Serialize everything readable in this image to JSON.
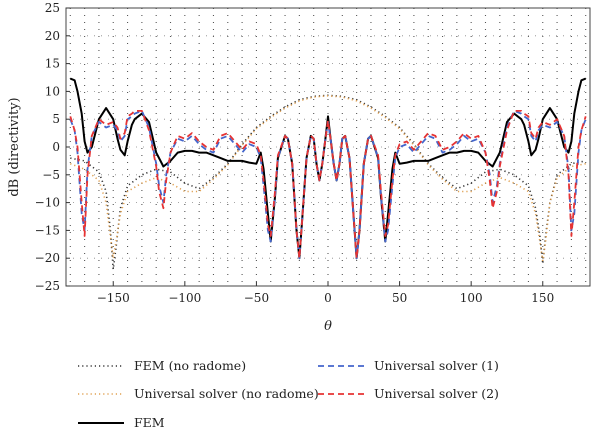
{
  "chart_data": {
    "type": "line",
    "xlabel": "θ",
    "ylabel": "dB (directivity)",
    "xlim": [
      -183,
      183
    ],
    "ylim": [
      -25,
      25
    ],
    "x_ticks": [
      -150,
      -100,
      -50,
      0,
      50,
      100,
      150
    ],
    "x_tick_labels": [
      "−150",
      "−100",
      "−50",
      "0",
      "50",
      "100",
      "150"
    ],
    "y_ticks": [
      -25,
      -20,
      -15,
      -10,
      -5,
      0,
      5,
      10,
      15,
      20,
      25
    ],
    "y_tick_labels": [
      "−25",
      "−20",
      "−15",
      "−10",
      "−5",
      "0",
      "5",
      "10",
      "15",
      "20",
      "25"
    ],
    "grid": "dotted",
    "legend_position": "below",
    "series": [
      {
        "name": "FEM (no radome)",
        "color": "#333333",
        "style": "dotted",
        "x": [
          -180,
          -170,
          -160,
          -155,
          -152,
          -150,
          -148,
          -145,
          -140,
          -130,
          -120,
          -110,
          -100,
          -90,
          -80,
          -70,
          -60,
          -50,
          -40,
          -30,
          -20,
          -10,
          0,
          10,
          20,
          30,
          40,
          50,
          60,
          70,
          80,
          90,
          100,
          110,
          120,
          130,
          140,
          145,
          148,
          150,
          152,
          155,
          160,
          170,
          180
        ],
        "y": [
          -2,
          -2.5,
          -4.5,
          -8,
          -15,
          -22,
          -18,
          -11,
          -7,
          -5,
          -4,
          -4.5,
          -6.5,
          -7.5,
          -5.5,
          -3,
          0.5,
          3.5,
          5.5,
          7.2,
          8.5,
          9.1,
          9.3,
          9.1,
          8.5,
          7.2,
          5.5,
          3.5,
          0.5,
          -3,
          -5.5,
          -7.5,
          -6.5,
          -4.5,
          -4,
          -5,
          -7,
          -11,
          -16,
          -21,
          -16,
          -10,
          -5,
          -3,
          -2.5
        ]
      },
      {
        "name": "Universal solver (no radome)",
        "color": "#e0a050",
        "style": "dotted",
        "x": [
          -180,
          -170,
          -160,
          -155,
          -152,
          -150,
          -148,
          -145,
          -140,
          -130,
          -120,
          -110,
          -100,
          -90,
          -80,
          -70,
          -60,
          -50,
          -40,
          -30,
          -20,
          -10,
          0,
          10,
          20,
          30,
          40,
          50,
          60,
          70,
          80,
          90,
          100,
          110,
          120,
          130,
          140,
          145,
          148,
          150,
          152,
          155,
          160,
          170,
          180
        ],
        "y": [
          -3,
          -4,
          -6,
          -10,
          -16,
          -20,
          -17,
          -12,
          -8,
          -6.5,
          -5.5,
          -6.5,
          -8,
          -8,
          -5.8,
          -3.2,
          0.3,
          3.3,
          5.3,
          7,
          8.3,
          9,
          9.2,
          9,
          8.3,
          7,
          5.3,
          3.3,
          0.3,
          -3.2,
          -5.8,
          -8,
          -8,
          -6.5,
          -5.5,
          -6.5,
          -8,
          -12,
          -17,
          -20.5,
          -17,
          -10,
          -5.5,
          -3.5,
          -3
        ]
      },
      {
        "name": "FEM",
        "color": "#000000",
        "style": "solid",
        "x": [
          -180,
          -177,
          -175,
          -172,
          -170,
          -168,
          -165,
          -160,
          -155,
          -150,
          -147,
          -145,
          -142,
          -140,
          -137,
          -135,
          -130,
          -125,
          -120,
          -115,
          -110,
          -105,
          -100,
          -95,
          -90,
          -85,
          -80,
          -75,
          -70,
          -65,
          -60,
          -55,
          -50,
          -47,
          -45,
          -42,
          -40,
          -37,
          -35,
          -30,
          -28,
          -25,
          -22,
          -20,
          -18,
          -15,
          -12,
          -10,
          -8,
          -6,
          -4,
          -2,
          0,
          2,
          4,
          6,
          8,
          10,
          12,
          15,
          18,
          20,
          22,
          25,
          28,
          30,
          35,
          37,
          40,
          42,
          45,
          47,
          50,
          55,
          60,
          65,
          70,
          75,
          80,
          85,
          90,
          95,
          100,
          105,
          110,
          115,
          120,
          125,
          130,
          135,
          137,
          140,
          142,
          145,
          147,
          150,
          155,
          160,
          165,
          168,
          170,
          172,
          175,
          177,
          180
        ],
        "y": [
          12.3,
          12,
          10,
          6,
          1,
          -1,
          0,
          5,
          7,
          5,
          1.5,
          -0.5,
          -1.5,
          1,
          4,
          5,
          6,
          4.5,
          -1,
          -3.5,
          -2.5,
          -1,
          -0.7,
          -0.7,
          -1,
          -1,
          -1.5,
          -2,
          -2.5,
          -2.5,
          -2.5,
          -2.8,
          -3,
          -1,
          -4,
          -12,
          -17,
          -9,
          -2,
          2,
          1.5,
          -3,
          -15,
          -20,
          -13,
          -2,
          2,
          1.5,
          -3,
          -6,
          -3,
          1,
          5.5,
          1,
          -3,
          -6,
          -3,
          1.5,
          2,
          -2,
          -13,
          -20,
          -15,
          -3,
          1.5,
          2,
          -2,
          -9,
          -17,
          -12,
          -4,
          -1,
          -3,
          -2.8,
          -2.5,
          -2.5,
          -2.5,
          -2,
          -1.5,
          -1,
          -1,
          -0.7,
          -0.7,
          -1,
          -2.5,
          -3.5,
          -1,
          4.5,
          6,
          5,
          4,
          1,
          -1.5,
          -0.5,
          1.5,
          5,
          7,
          5,
          0,
          -1,
          1,
          6,
          10,
          12,
          12.3
        ]
      },
      {
        "name": "Universal solver (1)",
        "color": "#4466cc",
        "style": "dashed",
        "x": [
          -180,
          -177,
          -175,
          -172,
          -170,
          -168,
          -165,
          -160,
          -155,
          -150,
          -147,
          -145,
          -142,
          -140,
          -137,
          -135,
          -130,
          -125,
          -120,
          -118,
          -115,
          -113,
          -110,
          -105,
          -100,
          -95,
          -90,
          -85,
          -80,
          -75,
          -70,
          -65,
          -60,
          -55,
          -50,
          -47,
          -45,
          -42,
          -40,
          -37,
          -35,
          -30,
          -28,
          -25,
          -22,
          -20,
          -18,
          -15,
          -12,
          -10,
          -8,
          -6,
          -4,
          -2,
          0,
          2,
          4,
          6,
          8,
          10,
          12,
          15,
          18,
          20,
          22,
          25,
          28,
          30,
          35,
          37,
          40,
          42,
          45,
          47,
          50,
          55,
          60,
          65,
          70,
          75,
          80,
          85,
          90,
          95,
          100,
          105,
          110,
          113,
          115,
          118,
          120,
          125,
          130,
          135,
          137,
          140,
          142,
          145,
          147,
          150,
          155,
          160,
          165,
          168,
          170,
          172,
          175,
          177,
          180
        ],
        "y": [
          5,
          3,
          -1,
          -12,
          -15,
          -4,
          2,
          4.5,
          3.5,
          4,
          3,
          1,
          2,
          5,
          5.5,
          6,
          6.5,
          3.5,
          -3,
          -7,
          -10,
          -5,
          -1,
          1.5,
          1,
          2,
          0.5,
          -0.5,
          -1,
          1.5,
          2,
          0.5,
          -1,
          0.5,
          0,
          -2,
          -7,
          -15,
          -17,
          -9,
          -2,
          2,
          1.5,
          -3,
          -15,
          -20,
          -13,
          -2,
          2,
          1.5,
          -3,
          -6,
          -3,
          1,
          4.5,
          1,
          -3,
          -6,
          -3,
          1.5,
          2,
          -2,
          -13,
          -20,
          -15,
          -3,
          1.5,
          2,
          -2,
          -9,
          -17,
          -15,
          -7,
          -2,
          0,
          0.5,
          -1,
          0.5,
          2,
          1.5,
          -1,
          -0.5,
          0.5,
          2,
          1,
          1.5,
          -1,
          -5,
          -10,
          -7,
          -3,
          3.5,
          6.5,
          6,
          5.5,
          5,
          2,
          1,
          3,
          4,
          3.5,
          4.5,
          2,
          -4,
          -15,
          -12,
          -1,
          3,
          5
        ]
      },
      {
        "name": "Universal solver (2)",
        "color": "#e63333",
        "style": "dashed",
        "x": [
          -180,
          -177,
          -175,
          -172,
          -170,
          -168,
          -165,
          -160,
          -155,
          -150,
          -147,
          -145,
          -142,
          -140,
          -137,
          -135,
          -130,
          -125,
          -120,
          -118,
          -115,
          -113,
          -110,
          -105,
          -100,
          -95,
          -90,
          -85,
          -80,
          -75,
          -70,
          -65,
          -60,
          -55,
          -50,
          -47,
          -45,
          -42,
          -40,
          -37,
          -35,
          -30,
          -28,
          -25,
          -22,
          -20,
          -18,
          -15,
          -12,
          -10,
          -8,
          -6,
          -4,
          -2,
          0,
          2,
          4,
          6,
          8,
          10,
          12,
          15,
          18,
          20,
          22,
          25,
          28,
          30,
          35,
          37,
          40,
          42,
          45,
          47,
          50,
          55,
          60,
          65,
          70,
          75,
          80,
          85,
          90,
          95,
          100,
          105,
          110,
          113,
          115,
          118,
          120,
          125,
          130,
          135,
          137,
          140,
          142,
          145,
          147,
          150,
          155,
          160,
          165,
          168,
          170,
          172,
          175,
          177,
          180
        ],
        "y": [
          5.5,
          3,
          0,
          -10,
          -16,
          -5,
          2,
          5,
          4,
          4.5,
          3.5,
          1.5,
          2.5,
          5.5,
          6,
          6.5,
          6.5,
          3,
          -3.5,
          -8,
          -11,
          -6,
          -1,
          2,
          1.5,
          2.5,
          1,
          0,
          -0.5,
          2,
          2.5,
          1,
          -0.5,
          1,
          0.5,
          -1.5,
          -6,
          -14,
          -16,
          -8,
          -1.5,
          2,
          1.5,
          -3,
          -15,
          -20,
          -13,
          -2,
          2,
          1.5,
          -3,
          -6,
          -3,
          1,
          4.8,
          1,
          -3,
          -6,
          -3,
          1.5,
          2,
          -2,
          -13,
          -20,
          -15,
          -3,
          1.5,
          2,
          -1.5,
          -8,
          -16,
          -14,
          -6,
          -1.5,
          0.5,
          1,
          -0.5,
          1,
          2.5,
          2,
          -0.5,
          0,
          1,
          2.5,
          1.5,
          2,
          -1,
          -6,
          -11,
          -8,
          -3.5,
          3,
          6.5,
          6.5,
          6,
          5.5,
          2.5,
          1.5,
          3.5,
          4.5,
          4,
          5,
          2,
          -5,
          -16,
          -10,
          0,
          3,
          5.5
        ]
      }
    ]
  }
}
